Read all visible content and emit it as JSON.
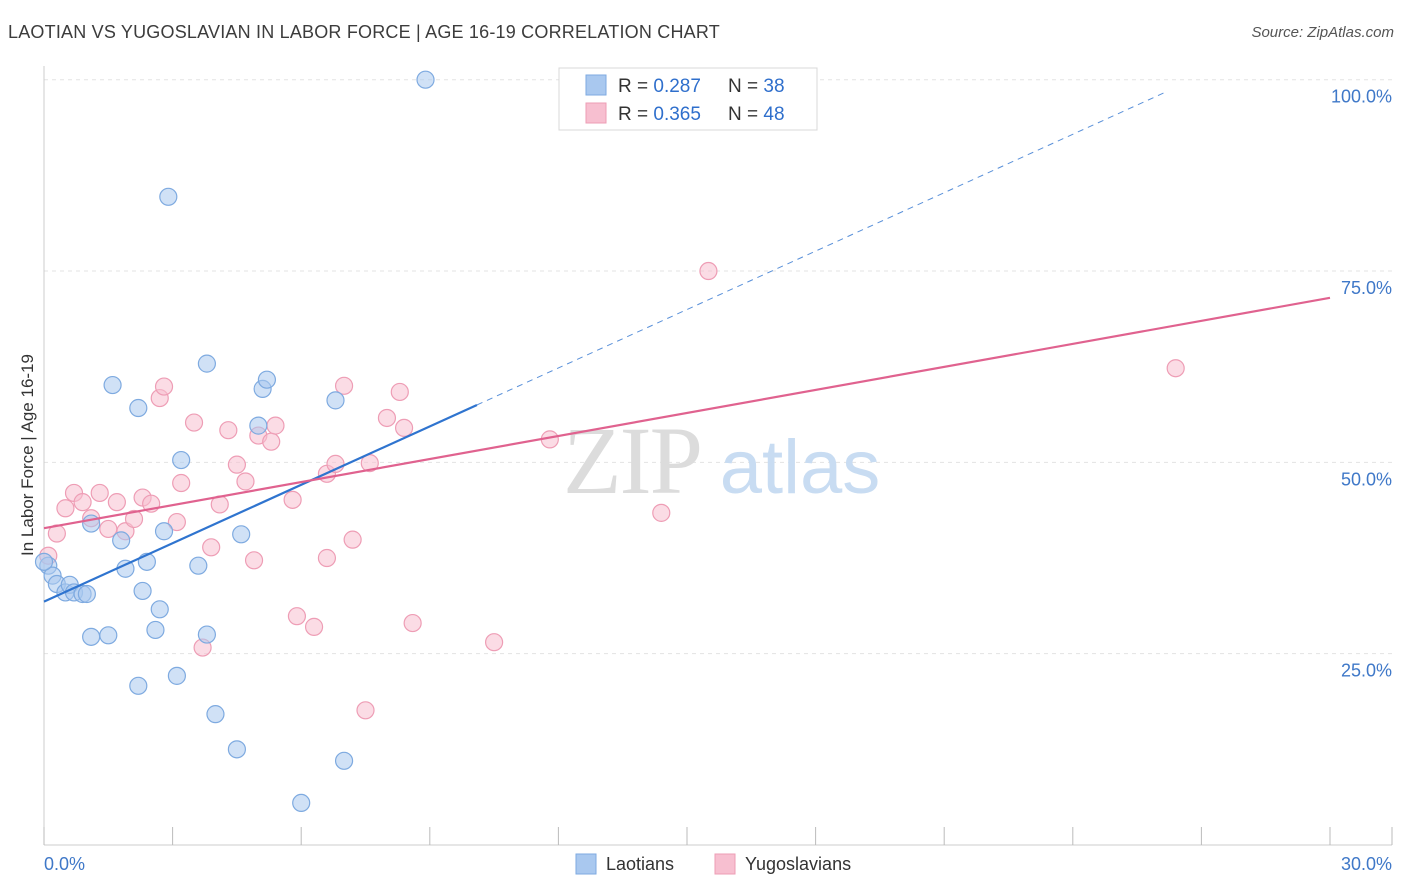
{
  "title": "LAOTIAN VS YUGOSLAVIAN IN LABOR FORCE | AGE 16-19 CORRELATION CHART",
  "source": "Source: ZipAtlas.com",
  "watermark": {
    "zip": "ZIP",
    "atlas": "atlas"
  },
  "legend_top": [
    {
      "r_label": "R = ",
      "r_value": "0.287",
      "n_label": "N = ",
      "n_value": "38"
    },
    {
      "r_label": "R = ",
      "r_value": "0.365",
      "n_label": "N = ",
      "n_value": "48"
    }
  ],
  "legend_bottom": [
    "Laotians",
    "Yugoslavians"
  ],
  "colors": {
    "laotian_fill": "#a9c8ef",
    "laotian_stroke": "#7eaae0",
    "laotian_line": "#2f74cf",
    "yugo_fill": "#f7bfd0",
    "yugo_stroke": "#ee9db5",
    "yugo_line": "#e0628f",
    "tick_text": "#3f78c8",
    "grid": "#e3e3e3"
  },
  "chart_data": {
    "type": "scatter",
    "title": "LAOTIAN VS YUGOSLAVIAN IN LABOR FORCE | AGE 16-19 CORRELATION CHART",
    "xlabel": "",
    "ylabel": "In Labor Force | Age 16-19",
    "xlim": [
      0,
      30
    ],
    "ylim": [
      0,
      102
    ],
    "x_tick_labels": [
      "0.0%",
      "30.0%"
    ],
    "y_ticks": [
      25,
      50,
      75,
      100
    ],
    "y_tick_labels": [
      "25.0%",
      "50.0%",
      "75.0%",
      "100.0%"
    ],
    "grid": true,
    "legend_position": "top-center",
    "series": [
      {
        "name": "Laotians",
        "R": 0.287,
        "N": 38,
        "trend": {
          "x0": 0,
          "y0": 31.8,
          "x1": 10.1,
          "y1": 57.5,
          "dashed_to_x": 26.2
        },
        "points": [
          [
            0.1,
            36.5
          ],
          [
            0.2,
            35.2
          ],
          [
            0.3,
            34.1
          ],
          [
            0.5,
            33.0
          ],
          [
            0.6,
            34.0
          ],
          [
            0.7,
            33.0
          ],
          [
            0.9,
            32.8
          ],
          [
            1.0,
            32.8
          ],
          [
            1.1,
            27.2
          ],
          [
            1.5,
            27.4
          ],
          [
            1.1,
            42.0
          ],
          [
            1.6,
            60.1
          ],
          [
            1.8,
            39.8
          ],
          [
            1.9,
            36.1
          ],
          [
            2.2,
            57.1
          ],
          [
            2.3,
            33.2
          ],
          [
            2.4,
            37.0
          ],
          [
            2.6,
            28.1
          ],
          [
            2.7,
            30.8
          ],
          [
            2.8,
            41.0
          ],
          [
            2.2,
            20.8
          ],
          [
            3.1,
            22.1
          ],
          [
            2.9,
            84.7
          ],
          [
            3.2,
            50.3
          ],
          [
            3.6,
            36.5
          ],
          [
            3.8,
            27.5
          ],
          [
            3.8,
            62.9
          ],
          [
            4.0,
            17.1
          ],
          [
            4.5,
            12.5
          ],
          [
            4.6,
            40.6
          ],
          [
            5.0,
            54.8
          ],
          [
            5.1,
            59.6
          ],
          [
            5.2,
            60.8
          ],
          [
            6.0,
            5.5
          ],
          [
            6.8,
            58.1
          ],
          [
            7.0,
            11.0
          ],
          [
            8.9,
            100.0
          ],
          [
            0.0,
            37.0
          ]
        ]
      },
      {
        "name": "Yugoslavians",
        "R": 0.365,
        "N": 48,
        "trend": {
          "x0": 0,
          "y0": 41.4,
          "x1": 30,
          "y1": 71.5
        },
        "points": [
          [
            0.1,
            37.8
          ],
          [
            0.3,
            40.7
          ],
          [
            0.5,
            44.0
          ],
          [
            0.7,
            46.0
          ],
          [
            0.9,
            44.8
          ],
          [
            1.1,
            42.7
          ],
          [
            1.3,
            46.0
          ],
          [
            1.5,
            41.3
          ],
          [
            1.7,
            44.8
          ],
          [
            1.9,
            41.0
          ],
          [
            2.1,
            42.6
          ],
          [
            2.3,
            45.4
          ],
          [
            2.5,
            44.6
          ],
          [
            2.7,
            58.4
          ],
          [
            2.8,
            59.9
          ],
          [
            3.1,
            42.2
          ],
          [
            3.2,
            47.3
          ],
          [
            3.5,
            55.2
          ],
          [
            3.7,
            25.8
          ],
          [
            3.9,
            38.9
          ],
          [
            4.1,
            44.5
          ],
          [
            4.3,
            54.2
          ],
          [
            4.5,
            49.7
          ],
          [
            4.7,
            47.5
          ],
          [
            4.9,
            37.2
          ],
          [
            5.0,
            53.5
          ],
          [
            5.3,
            52.7
          ],
          [
            5.4,
            54.8
          ],
          [
            5.8,
            45.1
          ],
          [
            5.9,
            29.9
          ],
          [
            6.3,
            28.5
          ],
          [
            6.6,
            48.5
          ],
          [
            6.6,
            37.5
          ],
          [
            6.8,
            49.8
          ],
          [
            7.0,
            60.0
          ],
          [
            7.2,
            39.9
          ],
          [
            7.5,
            17.6
          ],
          [
            7.6,
            49.9
          ],
          [
            8.0,
            55.8
          ],
          [
            8.3,
            59.2
          ],
          [
            8.4,
            54.5
          ],
          [
            8.6,
            29.0
          ],
          [
            10.5,
            26.5
          ],
          [
            11.8,
            53.0
          ],
          [
            14.4,
            43.4
          ],
          [
            15.5,
            75.0
          ],
          [
            26.4,
            62.3
          ],
          [
            14.0,
            100.0
          ]
        ]
      }
    ]
  }
}
